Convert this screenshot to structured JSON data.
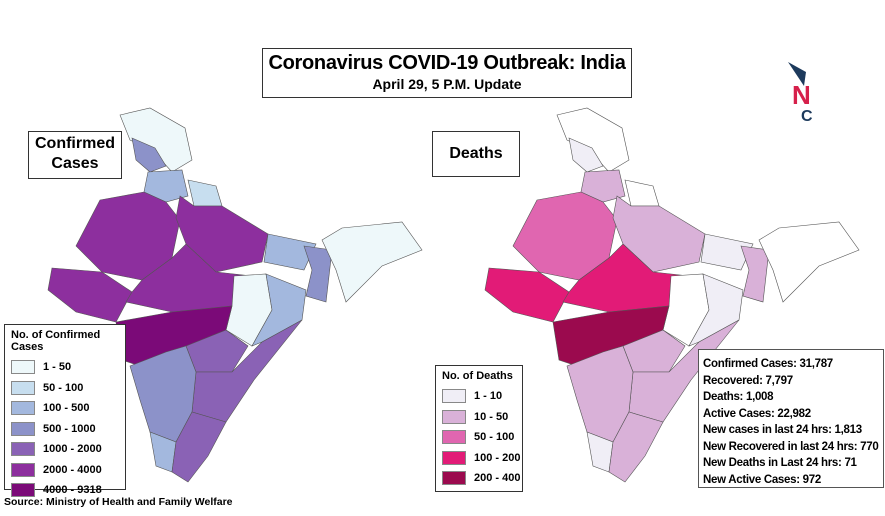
{
  "header": {
    "title": "Coronavirus COVID-19 Outbreak: India",
    "subtitle": "April 29, 5 P.M. Update"
  },
  "logo": {
    "text": "NC",
    "colors": {
      "arrow": "#1d3a5c",
      "n": "#d6204b",
      "c": "#1d3a5c"
    }
  },
  "confirmed_map": {
    "label_line1": "Confirmed",
    "label_line2": "Cases",
    "legend_title": "No. of Confirmed Cases",
    "bins": [
      {
        "label": "1 - 50",
        "color": "#eef8fa"
      },
      {
        "label": "50 - 100",
        "color": "#c7deef"
      },
      {
        "label": "100 - 500",
        "color": "#a3b8de"
      },
      {
        "label": "500 - 1000",
        "color": "#8c92c9"
      },
      {
        "label": "1000 - 2000",
        "color": "#8a62b5"
      },
      {
        "label": "2000 - 4000",
        "color": "#8d2f9e"
      },
      {
        "label": "4000 - 9318",
        "color": "#7b0a78"
      }
    ],
    "regions": {
      "ladakh": 0,
      "jk": 3,
      "punjab_hp": 2,
      "uttarakhand": 1,
      "rajasthan": 5,
      "gujarat": 5,
      "up": 5,
      "mp": 5,
      "bihar": 2,
      "bengal": 3,
      "chhattisgarh": 0,
      "odisha": 2,
      "maharashtra": 6,
      "telangana": 4,
      "andhra": 4,
      "karnataka": 3,
      "kerala": 2,
      "tamilnadu": 4,
      "northeast": 0
    }
  },
  "deaths_map": {
    "label": "Deaths",
    "legend_title": "No. of Deaths",
    "bins": [
      {
        "label": "1 - 10",
        "color": "#f0eef6"
      },
      {
        "label": "10 - 50",
        "color": "#d9b1d8"
      },
      {
        "label": "50 - 100",
        "color": "#e066b0"
      },
      {
        "label": "100 - 200",
        "color": "#e21b77"
      },
      {
        "label": "200 - 400",
        "color": "#9b0a4e"
      }
    ],
    "regions": {
      "ladakh": -1,
      "jk": 0,
      "punjab_hp": 1,
      "uttarakhand": -1,
      "rajasthan": 2,
      "gujarat": 3,
      "up": 1,
      "mp": 3,
      "bihar": 0,
      "bengal": 1,
      "chhattisgarh": -1,
      "odisha": 0,
      "maharashtra": 4,
      "telangana": 1,
      "andhra": 1,
      "karnataka": 1,
      "kerala": 0,
      "tamilnadu": 1,
      "northeast": -1
    }
  },
  "stats": [
    "Confirmed Cases: 31,787",
    "Recovered: 7,797",
    "Deaths:  1,008",
    "Active Cases:  22,982",
    "New cases in last 24 hrs: 1,813",
    "New Recovered in last 24 hrs: 770",
    "New Deaths in Last 24 hrs: 71",
    "New Active Cases: 972"
  ],
  "source": "Source: Ministry of Health and Family Welfare"
}
